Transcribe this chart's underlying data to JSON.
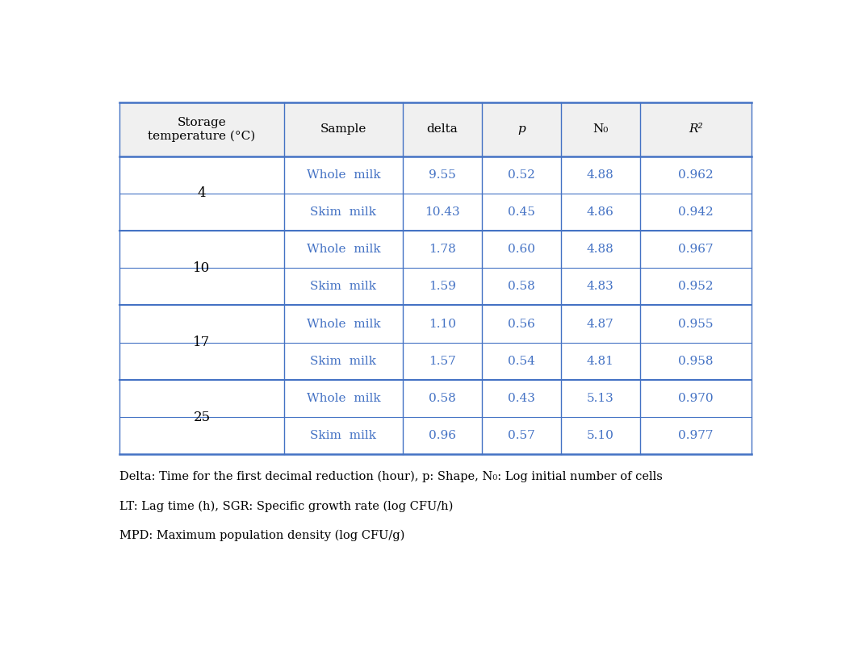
{
  "temperatures": [
    "4",
    "10",
    "17",
    "25"
  ],
  "rows": [
    [
      "Whole  milk",
      "9.55",
      "0.52",
      "4.88",
      "0.962"
    ],
    [
      "Skim  milk",
      "10.43",
      "0.45",
      "4.86",
      "0.942"
    ],
    [
      "Whole  milk",
      "1.78",
      "0.60",
      "4.88",
      "0.967"
    ],
    [
      "Skim  milk",
      "1.59",
      "0.58",
      "4.83",
      "0.952"
    ],
    [
      "Whole  milk",
      "1.10",
      "0.56",
      "4.87",
      "0.955"
    ],
    [
      "Skim  milk",
      "1.57",
      "0.54",
      "4.81",
      "0.958"
    ],
    [
      "Whole  milk",
      "0.58",
      "0.43",
      "5.13",
      "0.970"
    ],
    [
      "Skim  milk",
      "0.96",
      "0.57",
      "5.10",
      "0.977"
    ]
  ],
  "footnotes": [
    "Delta: Time for the first decimal reduction (hour), p: Shape, N₀: Log initial number of cells",
    "LT: Lag time (h), SGR: Specific growth rate (log CFU/h)",
    "MPD: Maximum population density (log CFU/g)"
  ],
  "header_bg": "#f0f0f0",
  "text_color_sample": "#4472c4",
  "text_color_data": "#4472c4",
  "text_color_header": "#000000",
  "text_color_temp": "#000000",
  "line_color": "#4472c4",
  "bg_color": "#ffffff",
  "font_size": 11,
  "footnote_font_size": 10.5
}
